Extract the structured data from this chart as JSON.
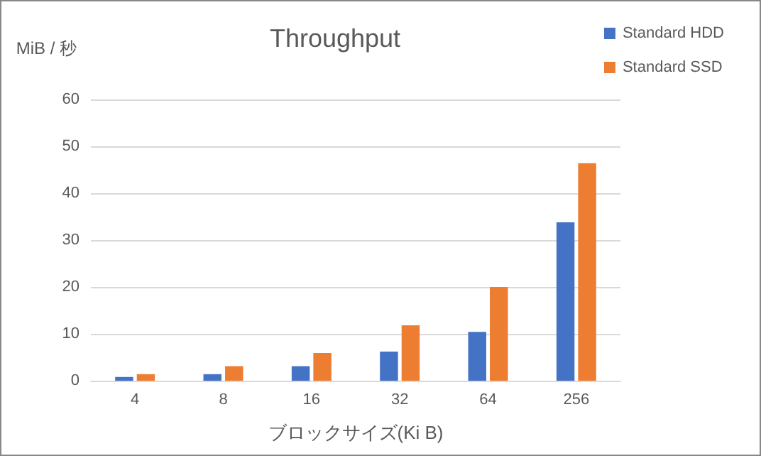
{
  "chart_data": {
    "type": "bar",
    "title": "Throughput",
    "xlabel": "ブロックサイズ(Ki B)",
    "ylabel": "MiB / 秒",
    "categories": [
      "4",
      "8",
      "16",
      "32",
      "64",
      "256"
    ],
    "series": [
      {
        "name": "Standard HDD",
        "color": "#4472c4",
        "values": [
          0.8,
          1.4,
          3.1,
          6.2,
          10.4,
          33.8
        ]
      },
      {
        "name": "Standard SSD",
        "color": "#ed7d31",
        "values": [
          1.4,
          3.1,
          5.9,
          11.8,
          20,
          46.4
        ]
      }
    ],
    "ylim": [
      0,
      60
    ],
    "yticks": [
      0,
      10,
      20,
      30,
      40,
      50,
      60
    ],
    "grid": "y",
    "legend": "top right"
  }
}
